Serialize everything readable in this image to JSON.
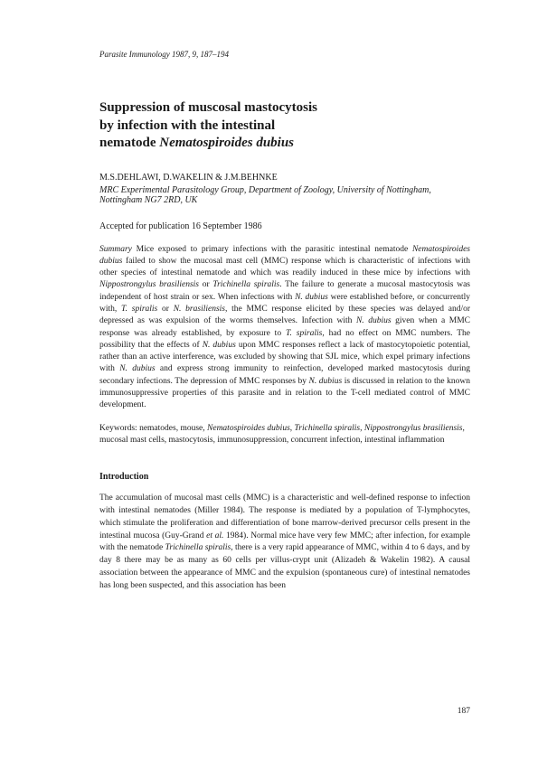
{
  "journal": "Parasite Immunology 1987, 9, 187–194",
  "title_line1": "Suppression of muscosal mastocytosis",
  "title_line2": "by infection with the intestinal",
  "title_line3_prefix": "nematode ",
  "title_line3_species": "Nematospiroides dubius",
  "authors": "M.S.DEHLAWI, D.WAKELIN & J.M.BEHNKE",
  "affiliation": "MRC Experimental Parasitology Group, Department of Zoology, University of Nottingham, Nottingham NG7 2RD, UK",
  "accepted": "Accepted for publication 16 September 1986",
  "summary_heading": "Summary",
  "summary_text1": " Mice exposed to primary infections with the parasitic intestinal nematode ",
  "summary_sp1": "Nematospiroides dubius",
  "summary_text2": " failed to show the mucosal mast cell (MMC) response which is characteristic of infections with other species of intestinal nematode and which was readily induced in these mice by infections with ",
  "summary_sp2": "Nippostrongylus brasiliensis",
  "summary_text3": " or ",
  "summary_sp3": "Trichinella spiralis",
  "summary_text4": ". The failure to generate a mucosal mastocytosis was independent of host strain or sex. When infections with ",
  "summary_sp4": "N. dubius",
  "summary_text5": " were established before, or concurrently with, ",
  "summary_sp5": "T. spiralis",
  "summary_text6": " or ",
  "summary_sp6": "N. brasiliensis",
  "summary_text7": ", the MMC response elicited by these species was delayed and/or depressed as was expulsion of the worms themselves. Infection with ",
  "summary_sp7": "N. dubius",
  "summary_text8": " given when a MMC response was already established, by exposure to ",
  "summary_sp8": "T. spiralis",
  "summary_text9": ", had no effect on MMC numbers. The possibility that the effects of ",
  "summary_sp9": "N. dubius",
  "summary_text10": " upon MMC responses reflect a lack of mastocytopoietic potential, rather than an active interference, was excluded by showing that SJL mice, which expel primary infections with ",
  "summary_sp10": "N. dubius",
  "summary_text11": " and express strong immunity to reinfection, developed marked mastocytosis during secondary infections. The depression of MMC responses by ",
  "summary_sp11": "N. dubius",
  "summary_text12": " is discussed in relation to the known immunosuppressive properties of this parasite and in relation to the T-cell mediated control of MMC development.",
  "keywords_label": "Keywords: ",
  "keywords_text1": "nematodes, mouse, ",
  "keywords_sp1": "Nematospiroides dubius",
  "keywords_sep1": ", ",
  "keywords_sp2": "Trichinella spiralis",
  "keywords_sep2": ", ",
  "keywords_sp3": "Nippostrongylus brasiliensis",
  "keywords_text2": ", mucosal mast cells, mastocytosis, immunosuppression, concurrent infection, intestinal inflammation",
  "intro_heading": "Introduction",
  "intro_text1": "The accumulation of mucosal mast cells (MMC) is a characteristic and well-defined response to infection with intestinal nematodes (Miller 1984). The response is mediated by a population of T-lymphocytes, which stimulate the proliferation and differentiation of bone marrow-derived precursor cells present in the intestinal mucosa (Guy-Grand ",
  "intro_etal": "et al.",
  "intro_text2": " 1984). Normal mice have very few MMC; after infection, for example with the nematode ",
  "intro_sp1": "Trichinella spiralis",
  "intro_text3": ", there is a very rapid appearance of MMC, within 4 to 6 days, and by day 8 there may be as many as 60 cells per villus-crypt unit (Alizadeh & Wakelin 1982). A causal association between the appearance of MMC and the expulsion (spontaneous cure) of intestinal nematodes has long been suspected, and this association has been",
  "page_number": "187"
}
